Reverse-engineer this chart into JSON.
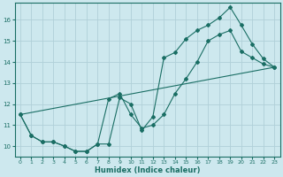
{
  "xlabel": "Humidex (Indice chaleur)",
  "xlim": [
    -0.5,
    23.5
  ],
  "ylim": [
    9.5,
    16.8
  ],
  "xticks": [
    0,
    1,
    2,
    3,
    4,
    5,
    6,
    7,
    8,
    9,
    10,
    11,
    12,
    13,
    14,
    15,
    16,
    17,
    18,
    19,
    20,
    21,
    22,
    23
  ],
  "yticks": [
    10,
    11,
    12,
    13,
    14,
    15,
    16
  ],
  "bg_color": "#cde8ee",
  "grid_color": "#b0d0d8",
  "line_color": "#1a6e64",
  "line1_x": [
    0,
    1,
    2,
    3,
    4,
    5,
    6,
    7,
    8,
    9,
    10,
    11,
    12,
    13,
    14,
    15,
    16,
    17,
    18,
    19,
    20,
    21,
    22,
    23
  ],
  "line1_y": [
    11.5,
    10.5,
    10.2,
    10.2,
    10.0,
    9.75,
    9.75,
    10.1,
    10.1,
    12.3,
    12.0,
    10.75,
    11.4,
    14.2,
    14.45,
    15.1,
    15.5,
    15.75,
    16.1,
    16.6,
    15.75,
    14.85,
    14.15,
    13.75
  ],
  "line2_x": [
    0,
    1,
    2,
    3,
    4,
    5,
    6,
    7,
    8,
    9,
    10,
    11,
    12,
    13,
    14,
    15,
    16,
    17,
    18,
    19,
    20,
    21,
    22,
    23
  ],
  "line2_y": [
    11.5,
    10.5,
    10.2,
    10.2,
    10.0,
    9.75,
    9.75,
    10.1,
    12.25,
    12.5,
    11.5,
    10.85,
    11.0,
    11.5,
    12.5,
    13.2,
    14.0,
    15.0,
    15.3,
    15.5,
    14.5,
    14.2,
    13.9,
    13.75
  ],
  "line3_x": [
    0,
    23
  ],
  "line3_y": [
    11.5,
    13.75
  ]
}
